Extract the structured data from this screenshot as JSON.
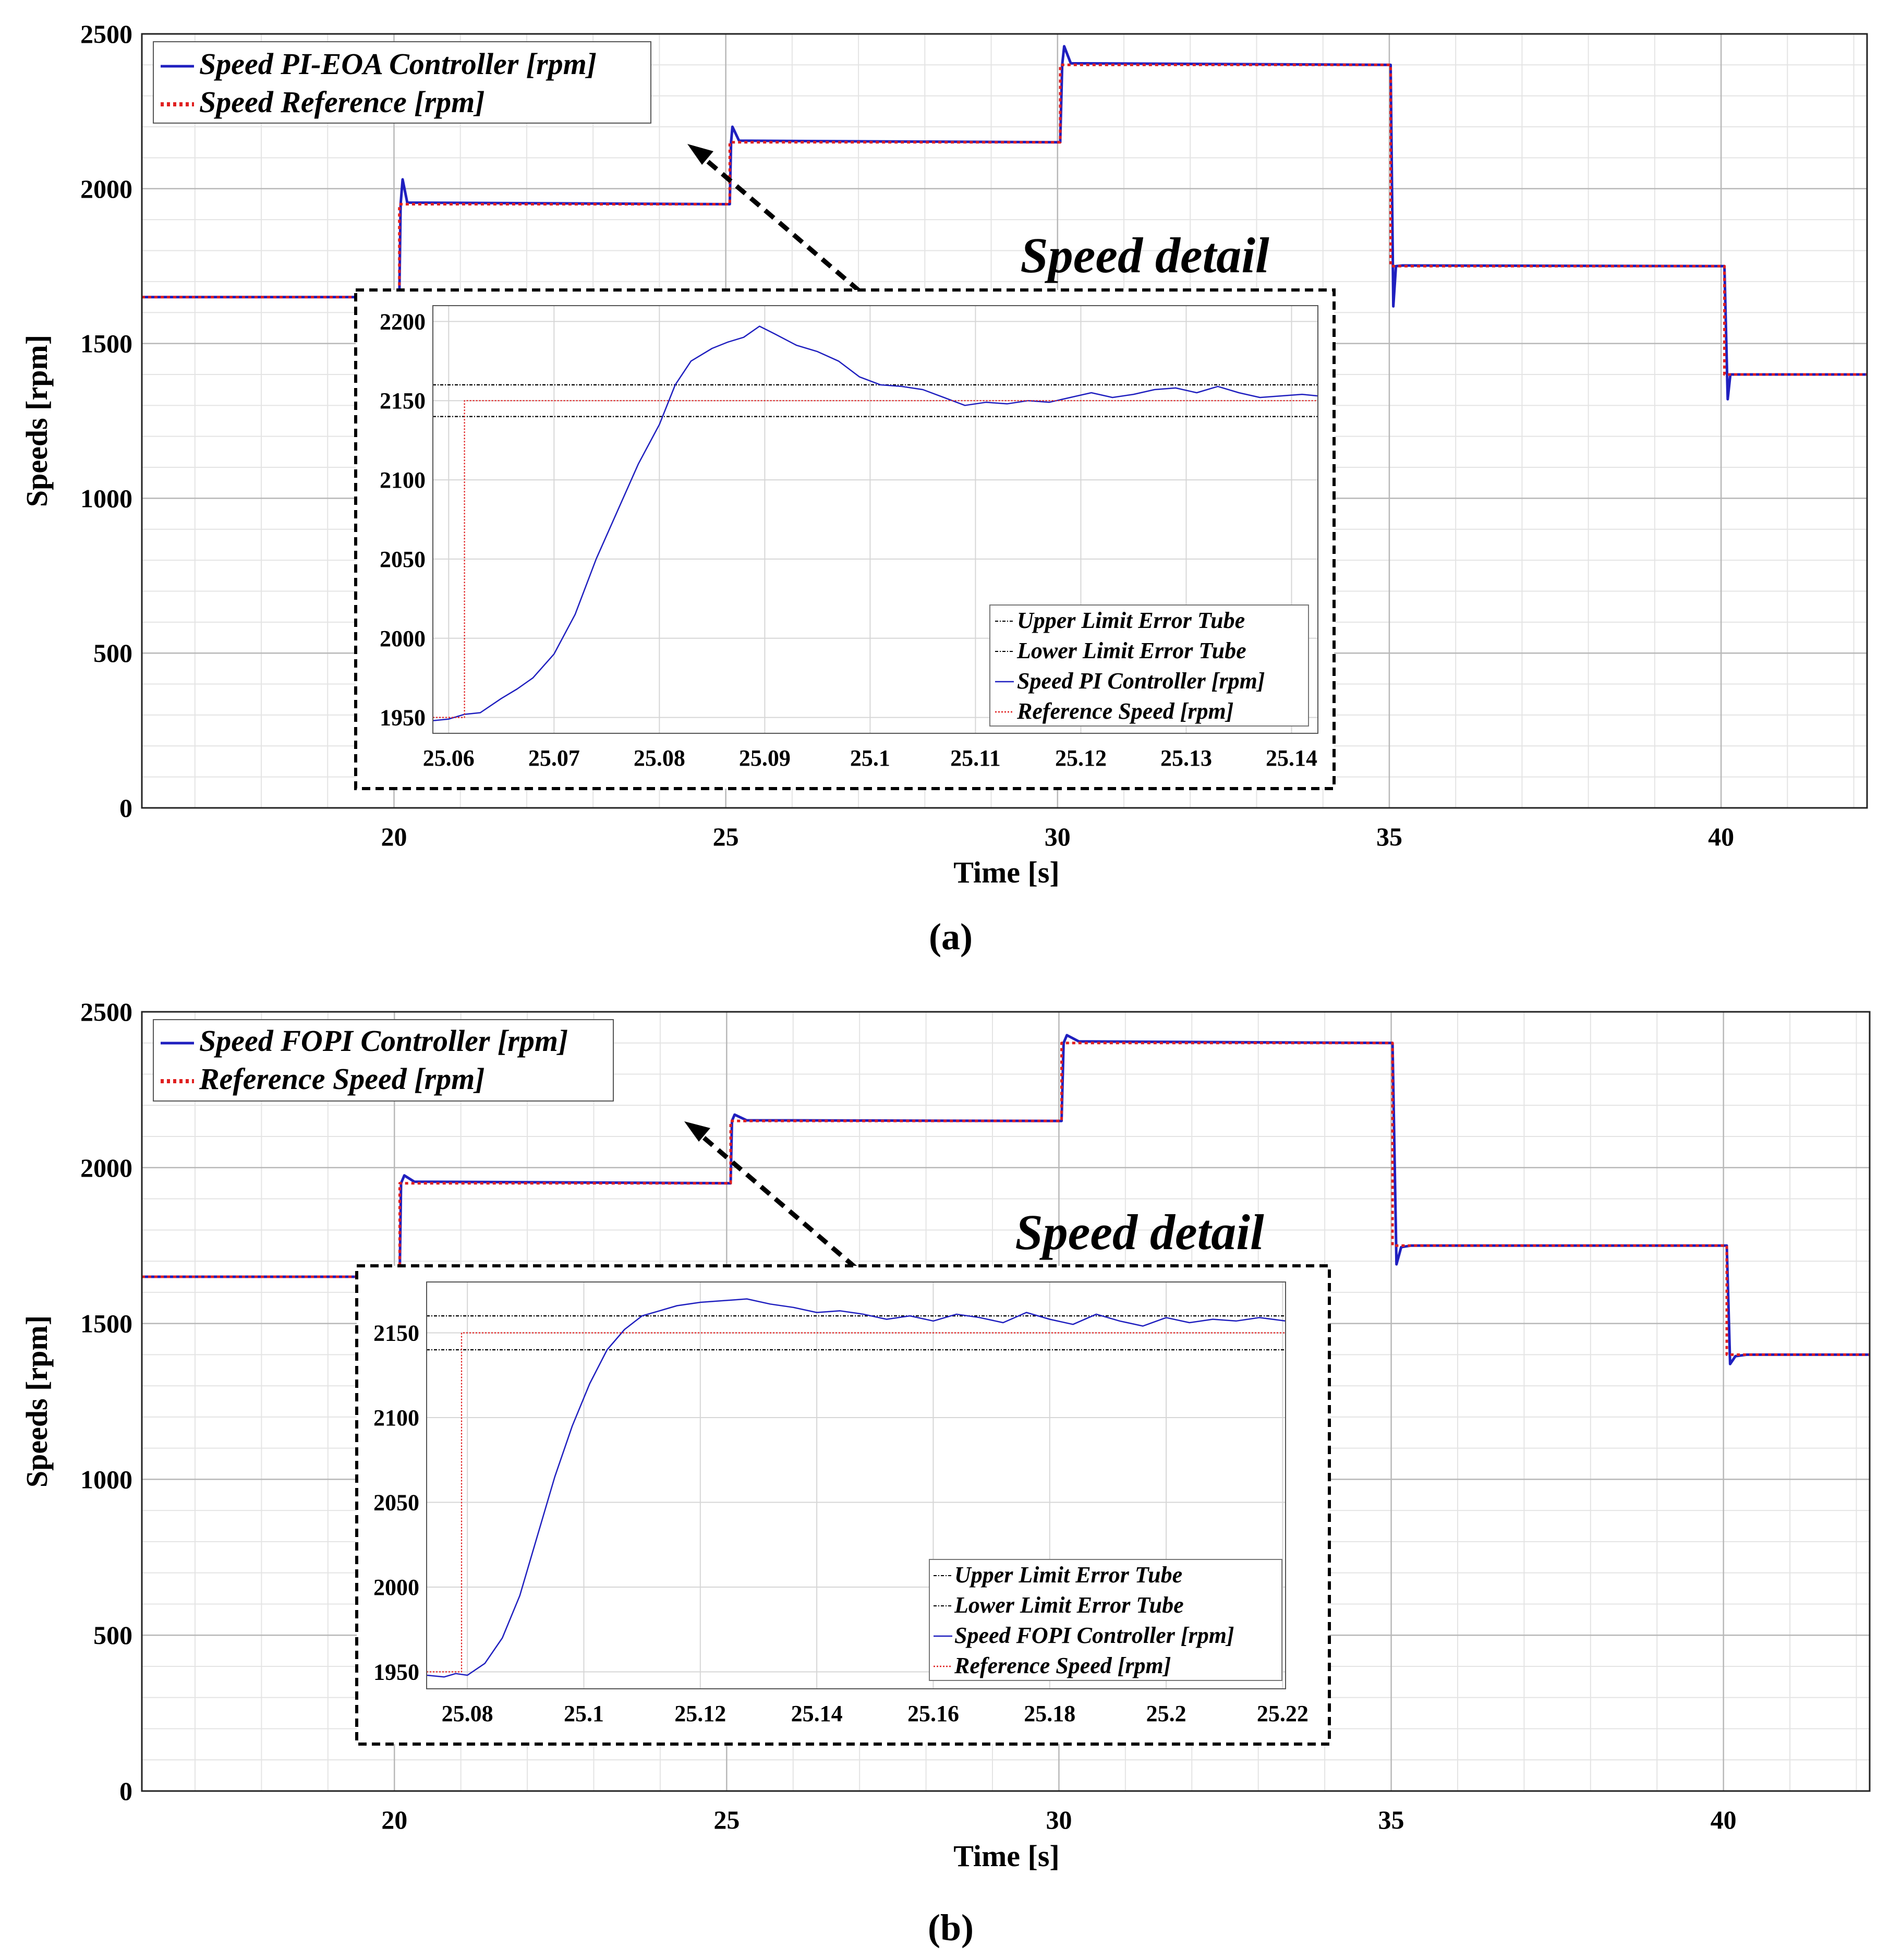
{
  "colors": {
    "controller": "#1f1fbf",
    "reference": "#e02020",
    "tube": "#000000",
    "grid_major": "#b8b8b8",
    "grid_minor": "#e4e4e4"
  },
  "chart_data": [
    {
      "id": "a",
      "type": "line",
      "caption": "(a)",
      "xlabel": "Time [s]",
      "ylabel": "Speeds [rpm]",
      "xlim": [
        16.2,
        42.2
      ],
      "ylim": [
        0,
        2500
      ],
      "xticks": [
        20,
        25,
        30,
        35,
        40
      ],
      "yticks": [
        0,
        500,
        1000,
        1500,
        2000,
        2500
      ],
      "grid": true,
      "legend_position": "top-left",
      "series": [
        {
          "name": "Speed PI-EOA Controller [rpm]",
          "style": "solid",
          "color": "#1f1fbf",
          "x": [
            16.2,
            20.08,
            20.1,
            20.13,
            20.2,
            25.06,
            25.08,
            25.1,
            25.2,
            30.04,
            30.07,
            30.1,
            30.2,
            35.02,
            35.06,
            35.1,
            35.2,
            40.05,
            40.1,
            40.14,
            40.25,
            42.2
          ],
          "y": [
            1650,
            1650,
            1950,
            2030,
            1955,
            1950,
            2150,
            2200,
            2155,
            2150,
            2400,
            2460,
            2405,
            2400,
            1620,
            1750,
            1752,
            1750,
            1320,
            1400,
            1400,
            1400
          ]
        },
        {
          "name": "Speed Reference [rpm]",
          "style": "dotted",
          "color": "#e02020",
          "x": [
            16.2,
            20.08,
            20.08,
            25.06,
            25.06,
            30.04,
            30.04,
            35.02,
            35.02,
            40.05,
            40.05,
            42.2
          ],
          "y": [
            1650,
            1650,
            1950,
            1950,
            2150,
            2150,
            2400,
            2400,
            1750,
            1750,
            1400,
            1400
          ]
        }
      ],
      "inset": {
        "title": "Speed detail",
        "xlim": [
          25.0585,
          25.1425
        ],
        "ylim": [
          1940,
          2210
        ],
        "xticks": [
          25.06,
          25.07,
          25.08,
          25.09,
          25.1,
          25.11,
          25.12,
          25.13,
          25.14
        ],
        "xtick_labels": [
          "25.06",
          "25.07",
          "25.08",
          "25.09",
          "25.1",
          "25.11",
          "25.12",
          "25.13",
          "25.14"
        ],
        "yticks": [
          1950,
          2000,
          2050,
          2100,
          2150,
          2200
        ],
        "legend_position": "bottom-right",
        "series": [
          {
            "name": "Upper Limit Error Tube",
            "style": "dashdot",
            "color": "#000000",
            "x": [
              25.0585,
              25.1425
            ],
            "y": [
              2160,
              2160
            ]
          },
          {
            "name": "Lower Limit Error Tube",
            "style": "dashdot",
            "color": "#000000",
            "x": [
              25.0585,
              25.1425
            ],
            "y": [
              2140,
              2140
            ]
          },
          {
            "name": "Speed PI Controller [rpm]",
            "style": "solid",
            "color": "#1f1fbf",
            "x": [
              25.0585,
              25.06,
              25.0615,
              25.063,
              25.065,
              25.0665,
              25.068,
              25.07,
              25.072,
              25.074,
              25.076,
              25.078,
              25.08,
              25.0815,
              25.083,
              25.085,
              25.0865,
              25.088,
              25.0895,
              25.091,
              25.093,
              25.095,
              25.097,
              25.099,
              25.101,
              25.103,
              25.105,
              25.107,
              25.109,
              25.111,
              25.113,
              25.115,
              25.117,
              25.119,
              25.121,
              25.123,
              25.125,
              25.127,
              25.129,
              25.131,
              25.133,
              25.135,
              25.137,
              25.139,
              25.141,
              25.1425
            ],
            "y": [
              1948,
              1949,
              1952,
              1953,
              1962,
              1968,
              1975,
              1990,
              2015,
              2050,
              2080,
              2110,
              2135,
              2160,
              2175,
              2183,
              2187,
              2190,
              2197,
              2192,
              2185,
              2181,
              2175,
              2165,
              2160,
              2159,
              2157,
              2152,
              2147,
              2149,
              2148,
              2150,
              2149,
              2152,
              2155,
              2152,
              2154,
              2157,
              2158,
              2155,
              2159,
              2155,
              2152,
              2153,
              2154,
              2153
            ]
          },
          {
            "name": "Reference Speed [rpm]",
            "style": "dotted",
            "color": "#e02020",
            "x": [
              25.0585,
              25.0615,
              25.0615,
              25.1425
            ],
            "y": [
              1950,
              1950,
              2150,
              2150
            ]
          }
        ]
      }
    },
    {
      "id": "b",
      "type": "line",
      "caption": "(b)",
      "xlabel": "Time [s]",
      "ylabel": "Speeds [rpm]",
      "xlim": [
        16.2,
        42.2
      ],
      "ylim": [
        0,
        2500
      ],
      "xticks": [
        20,
        25,
        30,
        35,
        40
      ],
      "yticks": [
        0,
        500,
        1000,
        1500,
        2000,
        2500
      ],
      "grid": true,
      "legend_position": "top-left",
      "series": [
        {
          "name": "Speed FOPI Controller [rpm]",
          "style": "solid",
          "color": "#1f1fbf",
          "x": [
            16.2,
            20.08,
            20.1,
            20.15,
            20.3,
            25.06,
            25.08,
            25.12,
            25.3,
            30.04,
            30.07,
            30.12,
            30.3,
            35.02,
            35.08,
            35.15,
            35.3,
            40.05,
            40.1,
            40.18,
            40.35,
            42.2
          ],
          "y": [
            1650,
            1650,
            1950,
            1975,
            1955,
            1950,
            2150,
            2170,
            2152,
            2150,
            2400,
            2425,
            2405,
            2400,
            1690,
            1745,
            1750,
            1750,
            1370,
            1395,
            1400,
            1400
          ]
        },
        {
          "name": "Reference Speed [rpm]",
          "style": "dotted",
          "color": "#e02020",
          "x": [
            16.2,
            20.08,
            20.08,
            25.06,
            25.06,
            30.04,
            30.04,
            35.02,
            35.02,
            40.05,
            40.05,
            42.2
          ],
          "y": [
            1650,
            1650,
            1950,
            1950,
            2150,
            2150,
            2400,
            2400,
            1750,
            1750,
            1400,
            1400
          ]
        }
      ],
      "inset": {
        "title": "Speed detail",
        "xlim": [
          25.073,
          25.2205
        ],
        "ylim": [
          1940,
          2180
        ],
        "xticks": [
          25.08,
          25.1,
          25.12,
          25.14,
          25.16,
          25.18,
          25.2,
          25.22
        ],
        "xtick_labels": [
          "25.08",
          "25.1",
          "25.12",
          "25.14",
          "25.16",
          "25.18",
          "25.2",
          "25.22"
        ],
        "yticks": [
          1950,
          2000,
          2050,
          2100,
          2150
        ],
        "legend_position": "bottom-right",
        "series": [
          {
            "name": "Upper Limit Error Tube",
            "style": "dashdot",
            "color": "#000000",
            "x": [
              25.073,
              25.2205
            ],
            "y": [
              2160,
              2160
            ]
          },
          {
            "name": "Lower Limit Error Tube",
            "style": "dashdot",
            "color": "#000000",
            "x": [
              25.073,
              25.2205
            ],
            "y": [
              2140,
              2140
            ]
          },
          {
            "name": "Speed FOPI Controller [rpm]",
            "style": "solid",
            "color": "#1f1fbf",
            "x": [
              25.073,
              25.076,
              25.078,
              25.08,
              25.083,
              25.086,
              25.089,
              25.092,
              25.095,
              25.098,
              25.101,
              25.104,
              25.107,
              25.11,
              25.113,
              25.116,
              25.12,
              25.124,
              25.128,
              25.132,
              25.136,
              25.14,
              25.144,
              25.148,
              25.152,
              25.156,
              25.16,
              25.164,
              25.168,
              25.172,
              25.176,
              25.18,
              25.184,
              25.188,
              25.192,
              25.196,
              25.2,
              25.204,
              25.208,
              25.212,
              25.216,
              25.2205
            ],
            "y": [
              1948,
              1947,
              1949,
              1948,
              1955,
              1970,
              1995,
              2030,
              2065,
              2095,
              2120,
              2140,
              2152,
              2160,
              2163,
              2166,
              2168,
              2169,
              2170,
              2167,
              2165,
              2162,
              2163,
              2161,
              2158,
              2160,
              2157,
              2161,
              2159,
              2156,
              2162,
              2158,
              2155,
              2161,
              2157,
              2154,
              2159,
              2156,
              2158,
              2157,
              2159,
              2157
            ]
          },
          {
            "name": "Reference Speed [rpm]",
            "style": "dotted",
            "color": "#e02020",
            "x": [
              25.073,
              25.079,
              25.079,
              25.2205
            ],
            "y": [
              1950,
              1950,
              2150,
              2150
            ]
          }
        ]
      }
    }
  ]
}
